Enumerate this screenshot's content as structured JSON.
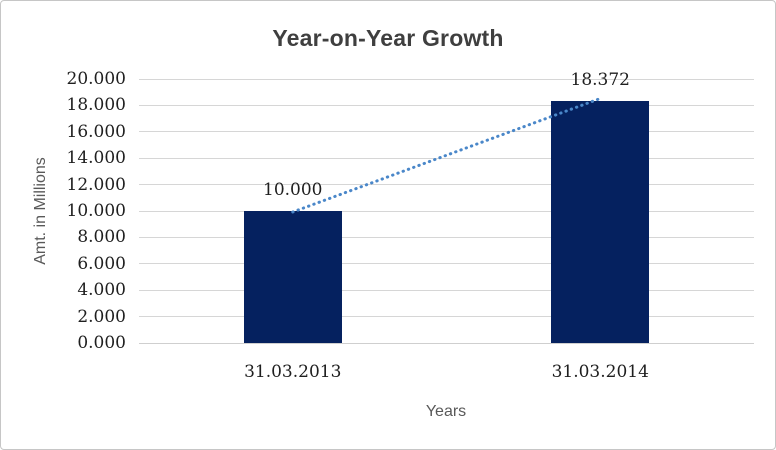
{
  "chart_data": {
    "type": "bar",
    "title": "Year-on-Year Growth",
    "xlabel": "Years",
    "ylabel": "Amt. in Millions",
    "categories": [
      "31.03.2013",
      "31.03.2014"
    ],
    "values": [
      10.0,
      18.372
    ],
    "data_labels": [
      "10.000",
      "18.372"
    ],
    "ylim": [
      0,
      20
    ],
    "ytick_step": 2,
    "ytick_labels": [
      "0.000",
      "2.000",
      "4.000",
      "6.000",
      "8.000",
      "10.000",
      "12.000",
      "14.000",
      "16.000",
      "18.000",
      "20.000"
    ],
    "grid": "horizontal-only",
    "legend": "none",
    "trendline": {
      "style": "dotted",
      "from_category": "31.03.2013",
      "to_category": "31.03.2014"
    },
    "colors": {
      "bar_fill": "#05215F",
      "trendline": "#4A87C9",
      "gridline": "#D6D6D6",
      "title_text": "#3F3F3F",
      "tick_text": "#1F1F1F",
      "axis_title_text": "#595959",
      "frame_border": "#C6C6C6",
      "background": "#FFFFFF"
    }
  }
}
